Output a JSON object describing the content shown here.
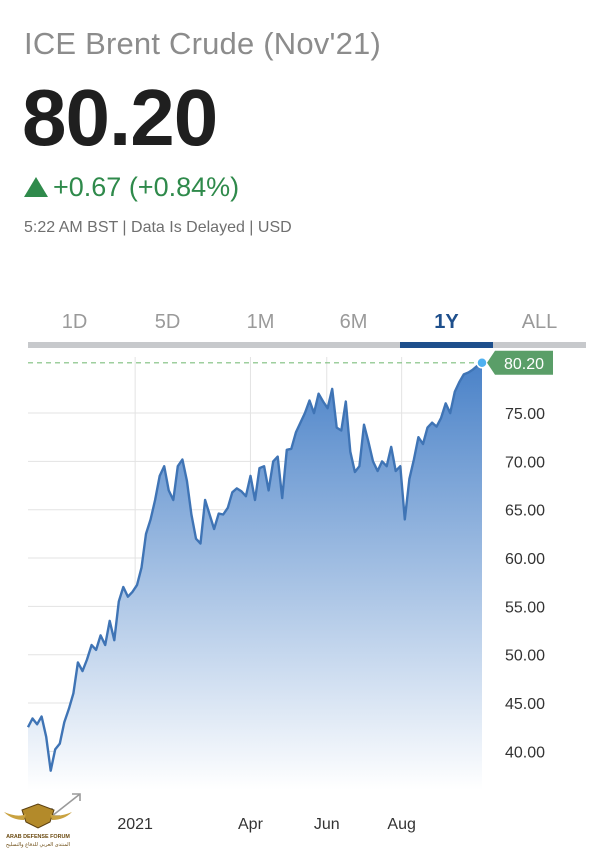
{
  "header": {
    "title": "ICE Brent Crude (Nov'21)",
    "price": "80.20",
    "change": "+0.67 (+0.84%)",
    "meta": "5:22 AM BST | Data Is Delayed | USD"
  },
  "tabs": [
    {
      "label": "1D",
      "active": false
    },
    {
      "label": "5D",
      "active": false
    },
    {
      "label": "1M",
      "active": false
    },
    {
      "label": "6M",
      "active": false
    },
    {
      "label": "1Y",
      "active": true
    },
    {
      "label": "ALL",
      "active": false
    }
  ],
  "colors": {
    "line": "#3f74b5",
    "fill_top": "#4a82c8",
    "fill_bottom": "#ffffff",
    "positive": "#2f8a4b",
    "active_tab": "#1e4f8c",
    "last_price_badge": "#5a9e68",
    "last_dot": "#4fb0f0"
  },
  "watermark": {
    "text": "ARAB DEFENSE FORUM",
    "subtext": "المنتدى العربي للدفاع والتسليح",
    "icon": "arrows-expand-icon"
  },
  "chart_data": {
    "type": "area",
    "ylim": [
      36,
      80.8
    ],
    "yticks": [
      40,
      45,
      50,
      55,
      60,
      65,
      70,
      75
    ],
    "ytick_labels": [
      "40.00",
      "45.00",
      "50.00",
      "55.00",
      "60.00",
      "65.00",
      "70.00",
      "75.00"
    ],
    "x_labels": [
      {
        "label": "2021",
        "t": 0.236
      },
      {
        "label": "Apr",
        "t": 0.49
      },
      {
        "label": "Jun",
        "t": 0.658
      },
      {
        "label": "Aug",
        "t": 0.823
      }
    ],
    "last_value": 80.2,
    "last_label": "80.20",
    "x": [
      0.0,
      0.01,
      0.02,
      0.03,
      0.04,
      0.05,
      0.06,
      0.07,
      0.08,
      0.09,
      0.1,
      0.11,
      0.12,
      0.13,
      0.14,
      0.15,
      0.16,
      0.17,
      0.18,
      0.19,
      0.2,
      0.21,
      0.22,
      0.23,
      0.24,
      0.25,
      0.26,
      0.27,
      0.28,
      0.29,
      0.3,
      0.31,
      0.32,
      0.33,
      0.34,
      0.35,
      0.36,
      0.37,
      0.38,
      0.39,
      0.4,
      0.41,
      0.42,
      0.43,
      0.44,
      0.45,
      0.46,
      0.47,
      0.48,
      0.49,
      0.5,
      0.51,
      0.52,
      0.53,
      0.54,
      0.55,
      0.56,
      0.57,
      0.58,
      0.59,
      0.6,
      0.61,
      0.62,
      0.63,
      0.64,
      0.65,
      0.66,
      0.67,
      0.68,
      0.69,
      0.7,
      0.71,
      0.72,
      0.73,
      0.74,
      0.75,
      0.76,
      0.77,
      0.78,
      0.79,
      0.8,
      0.81,
      0.82,
      0.83,
      0.84,
      0.85,
      0.86,
      0.87,
      0.88,
      0.89,
      0.9,
      0.91,
      0.92,
      0.93,
      0.94,
      0.95,
      0.96,
      0.97,
      0.98,
      0.99,
      1.0
    ],
    "y": [
      42.5,
      43.4,
      42.8,
      43.6,
      41.5,
      38.0,
      40.2,
      40.8,
      43.0,
      44.4,
      46.0,
      49.2,
      48.3,
      49.5,
      51.0,
      50.5,
      52.0,
      51.0,
      53.5,
      51.5,
      55.5,
      57.0,
      56.0,
      56.5,
      57.2,
      59.0,
      62.5,
      64.0,
      66.0,
      68.5,
      69.5,
      67.0,
      66.0,
      69.5,
      70.2,
      68.0,
      64.5,
      62.0,
      61.5,
      66.0,
      64.5,
      63.0,
      64.6,
      64.5,
      65.2,
      66.8,
      67.2,
      66.9,
      66.4,
      68.5,
      66.0,
      69.3,
      69.5,
      67.0,
      70.0,
      70.5,
      66.2,
      71.2,
      71.3,
      73.0,
      74.0,
      75.0,
      76.3,
      75.0,
      77.0,
      76.2,
      75.5,
      77.5,
      73.5,
      73.2,
      76.2,
      71.0,
      68.9,
      69.5,
      73.8,
      72.0,
      70.0,
      69.0,
      70.0,
      69.5,
      71.5,
      69.0,
      69.5,
      64.0,
      68.2,
      70.2,
      72.5,
      71.8,
      73.5,
      74.0,
      73.6,
      74.5,
      76.0,
      75.0,
      77.2,
      78.2,
      79.0,
      79.2,
      79.5,
      79.9,
      80.2
    ]
  }
}
